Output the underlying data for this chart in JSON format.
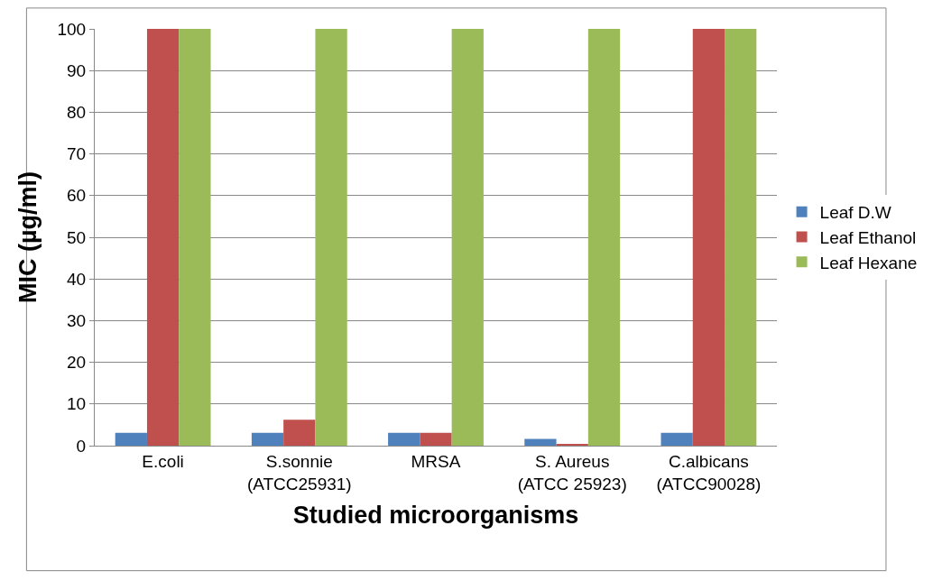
{
  "chart_data": {
    "type": "bar",
    "xlabel": "Studied microorganisms",
    "ylabel": "MIC (µg/ml)",
    "categories": [
      "E.coli",
      "S.sonnie\n(ATCC25931)",
      "MRSA",
      "S. Aureus\n(ATCC 25923)",
      "C.albicans\n(ATCC90028)"
    ],
    "series": [
      {
        "name": "Leaf D.W",
        "color": "#4f81bd",
        "values": [
          3.1,
          3.1,
          3.1,
          1.6,
          3.1
        ]
      },
      {
        "name": "Leaf Ethanol",
        "color": "#c0504d",
        "values": [
          100,
          6.2,
          3.1,
          0.4,
          100
        ]
      },
      {
        "name": "Leaf Hexane",
        "color": "#9bbb59",
        "values": [
          100,
          100,
          100,
          100,
          100
        ]
      }
    ],
    "ylim": [
      0,
      100
    ],
    "yticks": [
      0,
      10,
      20,
      30,
      40,
      50,
      60,
      70,
      80,
      90,
      100
    ],
    "grid": "y",
    "legend": "right"
  }
}
